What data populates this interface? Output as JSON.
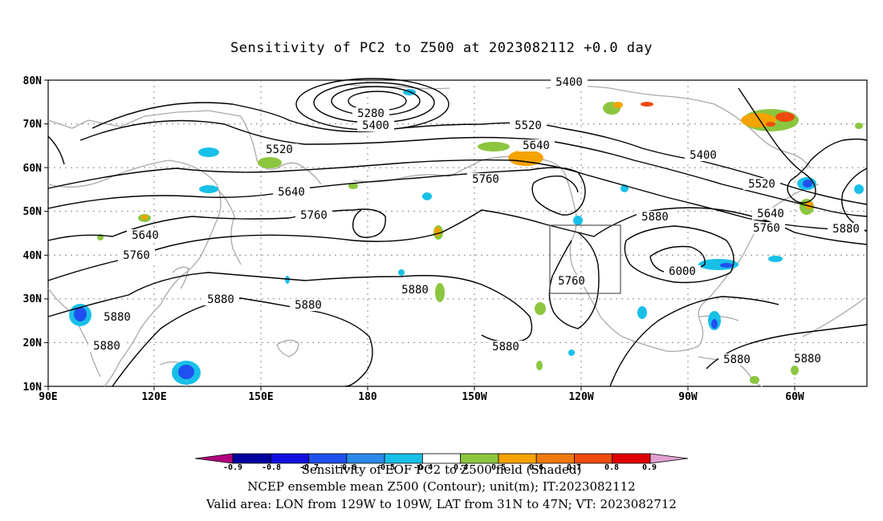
{
  "title": "Sensitivity of PC2 to Z500 at 2023082112 +0.0 day",
  "lat_labels": [
    "80N",
    "70N",
    "60N",
    "50N",
    "40N",
    "30N",
    "20N",
    "10N"
  ],
  "lon_labels": [
    "90E",
    "120E",
    "150E",
    "180",
    "150W",
    "120W",
    "90W",
    "60W"
  ],
  "contours": [
    {
      "label": "5400",
      "pos": "north top"
    },
    {
      "label": "5280",
      "pos": "arctic low center"
    },
    {
      "label": "5400",
      "pos": "arctic low outer"
    },
    {
      "label": "5520",
      "pos": "north Pacific"
    },
    {
      "label": "5520",
      "pos": "west"
    },
    {
      "label": "5640",
      "pos": "Gulf of Alaska"
    },
    {
      "label": "5640",
      "pos": "Siberia"
    },
    {
      "label": "5760",
      "pos": "Alaska"
    },
    {
      "label": "5760",
      "pos": "west Pacific"
    },
    {
      "label": "5640",
      "pos": "Asia"
    },
    {
      "label": "5760",
      "pos": "Asia low"
    },
    {
      "label": "5880",
      "pos": "west Pacific ridge"
    },
    {
      "label": "5880",
      "pos": "central Pacific"
    },
    {
      "label": "5880",
      "pos": "subtropical"
    },
    {
      "label": "5880",
      "pos": "south"
    },
    {
      "label": "5880",
      "pos": "far west"
    },
    {
      "label": "5880",
      "pos": "Indochina"
    },
    {
      "label": "5760",
      "pos": "California trough"
    },
    {
      "label": "5880",
      "pos": "North America"
    },
    {
      "label": "6000",
      "pos": "North America high"
    },
    {
      "label": "5400",
      "pos": "Canada"
    },
    {
      "label": "5520",
      "pos": "Canada east"
    },
    {
      "label": "5640",
      "pos": "Atlantic"
    },
    {
      "label": "5760",
      "pos": "Atlantic 2"
    },
    {
      "label": "5880",
      "pos": "Atlantic 3"
    },
    {
      "label": "5880",
      "pos": "Caribbean"
    },
    {
      "label": "5880",
      "pos": "Atlantic south"
    }
  ],
  "colorbar": {
    "labels": [
      "-0.9",
      "-0.8",
      "-0.7",
      "-0.6",
      "-0.5",
      "-0.4",
      "0.4",
      "0.5",
      "0.6",
      "0.7",
      "0.8",
      "0.9"
    ],
    "colors": [
      "#b2007d",
      "#0000a0",
      "#1010e0",
      "#2050f0",
      "#2a8ae8",
      "#18c0e8",
      "#ffffff",
      "#8cc63f",
      "#f5a300",
      "#f07a10",
      "#f04a10",
      "#e00000",
      "#e0a0d0"
    ]
  },
  "footer_lines": [
    "Sensitivity of EOF PC2 to Z500 field (Shaded)",
    "NCEP ensemble mean Z500 (Contour); unit(m); IT:2023082112",
    "Valid area: LON from 129W to 109W, LAT from 31N to 47N; VT: 2023082712"
  ],
  "valid_box": {
    "lon_min": -129,
    "lon_max": -109,
    "lat_min": 31,
    "lat_max": 47
  }
}
